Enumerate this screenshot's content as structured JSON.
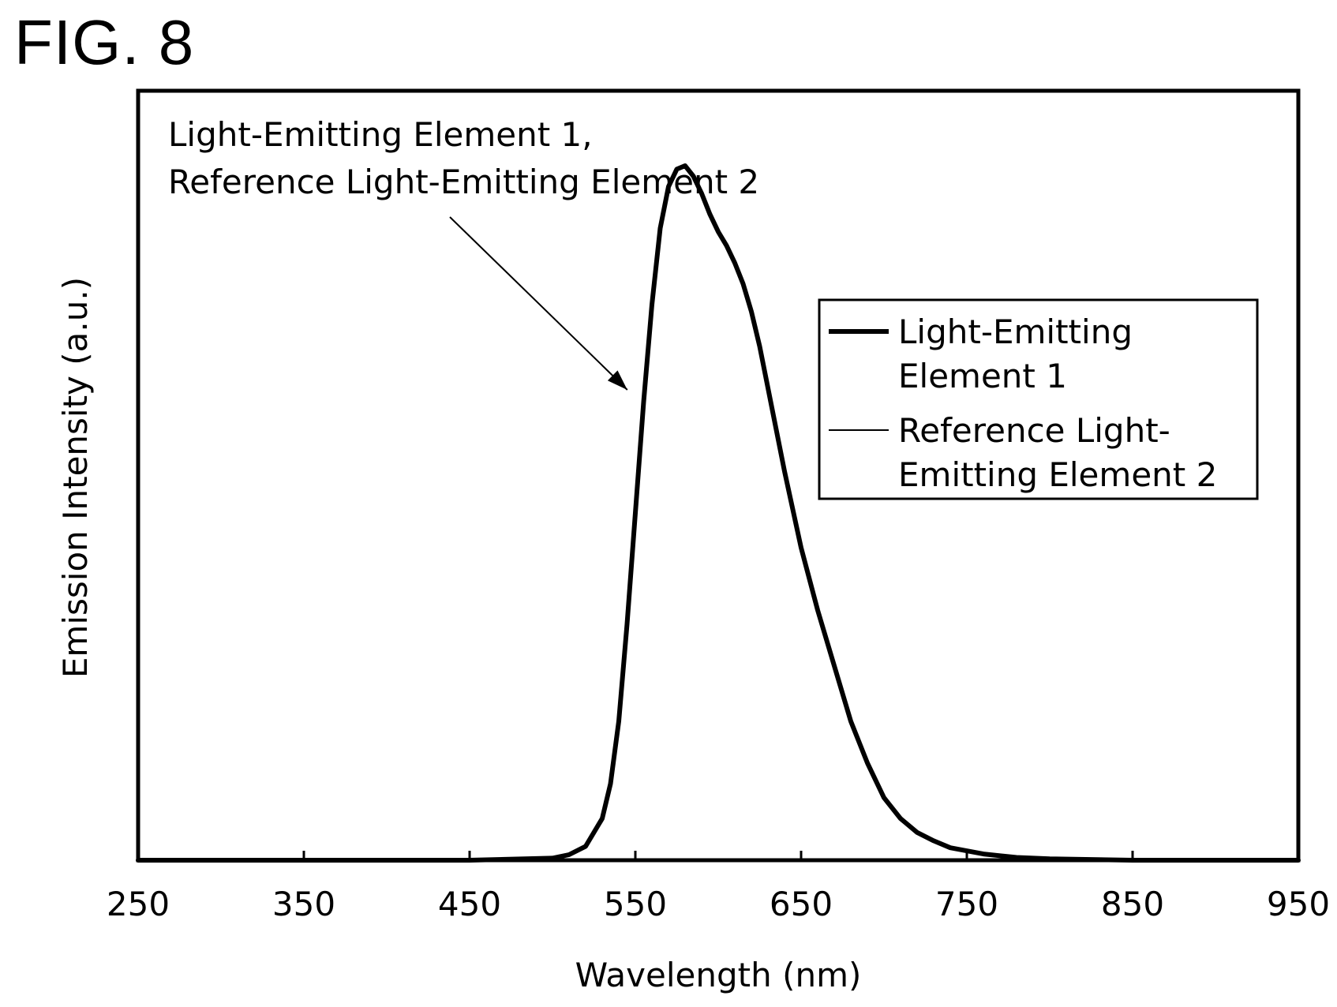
{
  "figure_label": "FIG. 8",
  "chart_data": {
    "type": "line",
    "title": "",
    "xlabel": "Wavelength (nm)",
    "ylabel": "Emission Intensity (a.u.)",
    "xlim": [
      250,
      950
    ],
    "ylim": [
      0,
      1.0
    ],
    "x_ticks": [
      250,
      350,
      450,
      550,
      650,
      750,
      850,
      950
    ],
    "y_ticks": [],
    "grid": false,
    "legend_position": "top-right",
    "annotation": {
      "lines": [
        "Light-Emitting Element 1,",
        "Reference Light-Emitting Element 2"
      ],
      "points_to": {
        "x": 548,
        "y": 0.7
      }
    },
    "series": [
      {
        "name": "Light-Emitting Element 1",
        "legend_lines": [
          "Light-Emitting",
          "Element 1"
        ],
        "style": "thick",
        "x": [
          250,
          450,
          500,
          510,
          520,
          530,
          535,
          540,
          545,
          550,
          555,
          560,
          565,
          570,
          575,
          580,
          585,
          590,
          595,
          600,
          605,
          610,
          615,
          620,
          625,
          630,
          640,
          650,
          660,
          670,
          680,
          690,
          700,
          710,
          720,
          730,
          740,
          760,
          780,
          800,
          850,
          950
        ],
        "y": [
          0,
          0,
          0.003,
          0.008,
          0.02,
          0.06,
          0.11,
          0.2,
          0.34,
          0.5,
          0.66,
          0.8,
          0.91,
          0.97,
          0.995,
          1.0,
          0.985,
          0.96,
          0.93,
          0.905,
          0.885,
          0.86,
          0.83,
          0.79,
          0.74,
          0.68,
          0.56,
          0.45,
          0.36,
          0.28,
          0.2,
          0.14,
          0.09,
          0.06,
          0.04,
          0.028,
          0.018,
          0.009,
          0.004,
          0.002,
          0,
          0
        ]
      },
      {
        "name": "Reference Light-Emitting Element 2",
        "legend_lines": [
          "Reference Light-",
          "Emitting Element 2"
        ],
        "style": "thin",
        "x": [
          250,
          450,
          500,
          510,
          520,
          530,
          535,
          540,
          545,
          550,
          555,
          560,
          565,
          570,
          575,
          580,
          585,
          590,
          595,
          600,
          605,
          610,
          615,
          620,
          625,
          630,
          640,
          650,
          660,
          670,
          680,
          690,
          700,
          710,
          720,
          730,
          740,
          760,
          780,
          800,
          850,
          950
        ],
        "y": [
          0,
          0,
          0.003,
          0.008,
          0.02,
          0.06,
          0.11,
          0.2,
          0.34,
          0.5,
          0.66,
          0.8,
          0.91,
          0.97,
          0.995,
          1.0,
          0.985,
          0.96,
          0.93,
          0.905,
          0.885,
          0.86,
          0.83,
          0.79,
          0.74,
          0.68,
          0.56,
          0.45,
          0.36,
          0.28,
          0.2,
          0.14,
          0.09,
          0.06,
          0.04,
          0.028,
          0.018,
          0.009,
          0.004,
          0.002,
          0,
          0
        ]
      }
    ]
  }
}
